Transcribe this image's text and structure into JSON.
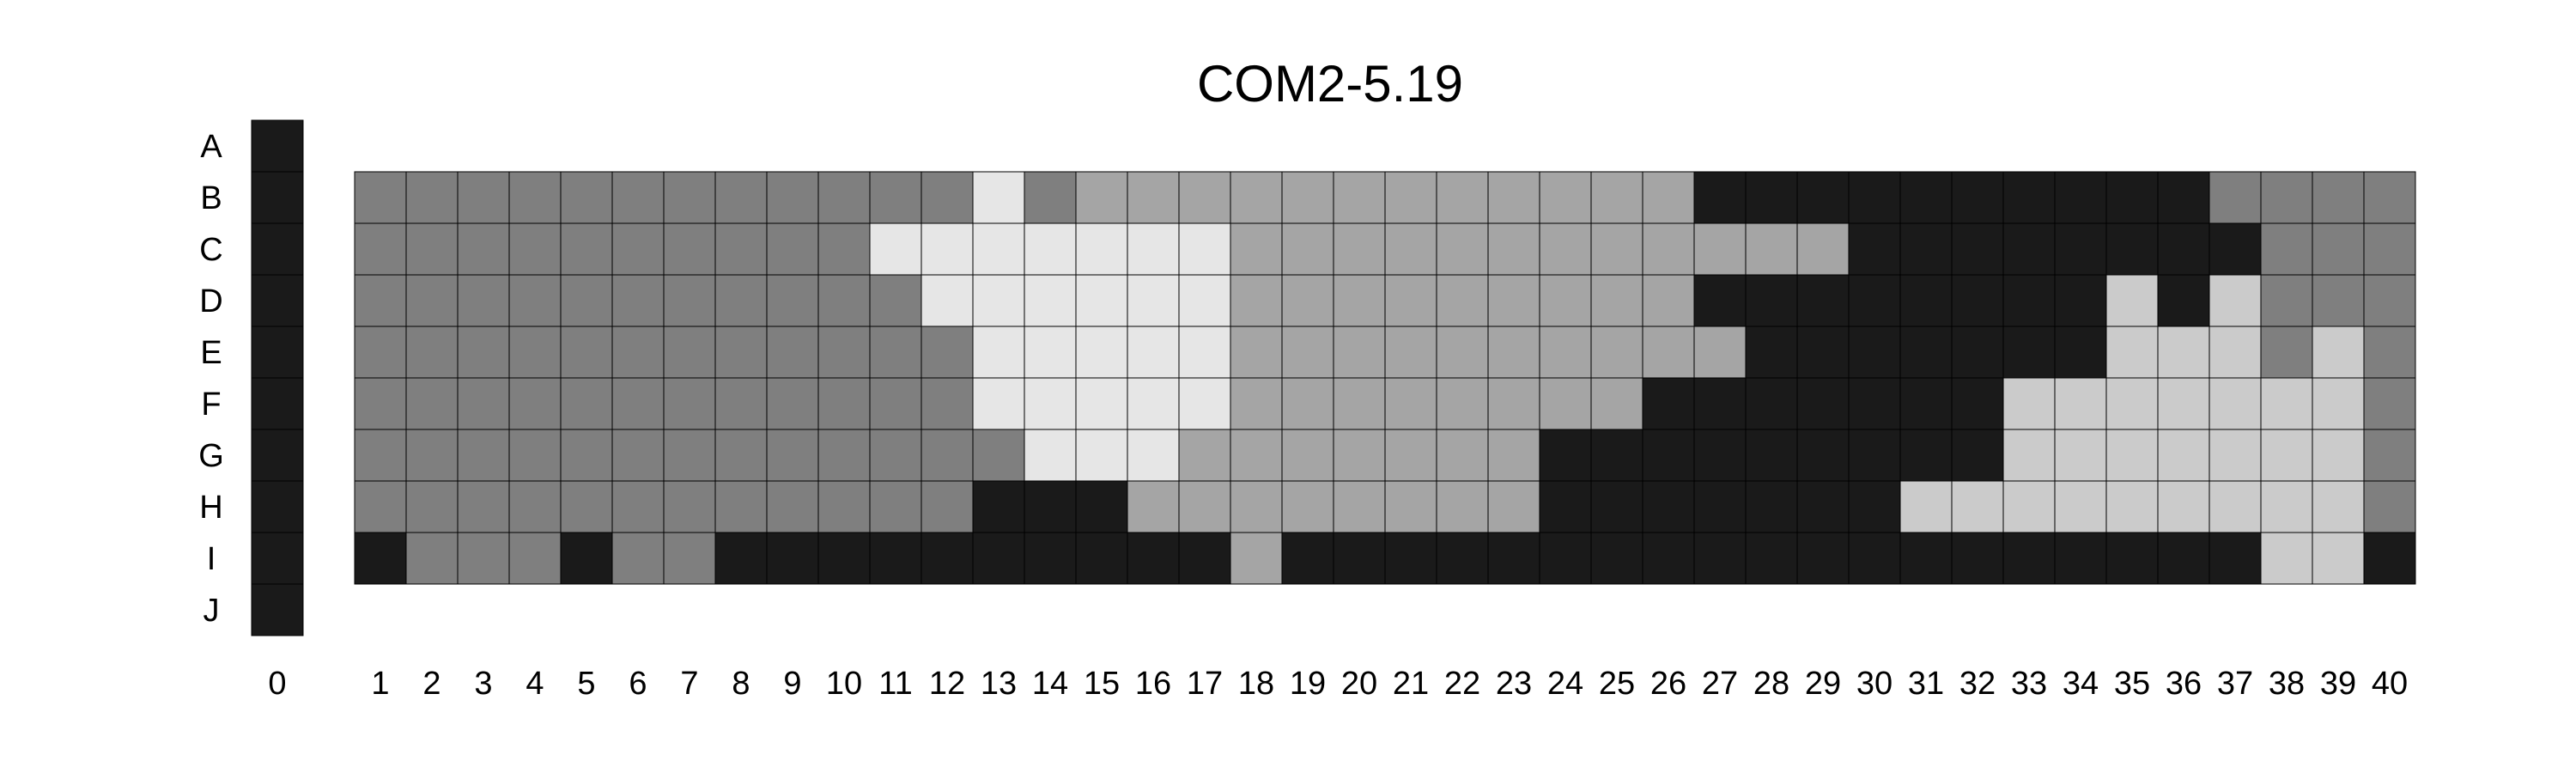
{
  "chart_data": {
    "type": "heatmap",
    "title": "COM2-5.19",
    "row_labels": [
      "A",
      "B",
      "C",
      "D",
      "E",
      "F",
      "G",
      "H",
      "I",
      "J"
    ],
    "column_zero_label": "0",
    "columns": [
      "1",
      "2",
      "3",
      "4",
      "5",
      "6",
      "7",
      "8",
      "9",
      "10",
      "11",
      "12",
      "13",
      "14",
      "15",
      "16",
      "17",
      "18",
      "19",
      "20",
      "21",
      "22",
      "23",
      "24",
      "25",
      "26",
      "27",
      "28",
      "29",
      "30",
      "31",
      "32",
      "33",
      "34",
      "35",
      "36",
      "37",
      "38",
      "39",
      "40"
    ],
    "grid_rows": [
      "B",
      "C",
      "D",
      "E",
      "F",
      "G",
      "H",
      "I"
    ],
    "palette": {
      "0": "#1a1a1a",
      "1": "#7f7f7f",
      "2": "#a5a5a5",
      "3": "#cbcbcb",
      "4": "#e6e6e6"
    },
    "column_zero_color": "#1a1a1a",
    "cell_border_color": "#000000",
    "values": [
      [
        1,
        1,
        1,
        1,
        1,
        1,
        1,
        1,
        1,
        1,
        1,
        1,
        4,
        1,
        2,
        2,
        2,
        2,
        2,
        2,
        2,
        2,
        2,
        2,
        2,
        2,
        0,
        0,
        0,
        0,
        0,
        0,
        0,
        0,
        0,
        0,
        1,
        1,
        1,
        1
      ],
      [
        1,
        1,
        1,
        1,
        1,
        1,
        1,
        1,
        1,
        1,
        4,
        4,
        4,
        4,
        4,
        4,
        4,
        2,
        2,
        2,
        2,
        2,
        2,
        2,
        2,
        2,
        2,
        2,
        2,
        0,
        0,
        0,
        0,
        0,
        0,
        0,
        0,
        1,
        1,
        1
      ],
      [
        1,
        1,
        1,
        1,
        1,
        1,
        1,
        1,
        1,
        1,
        1,
        4,
        4,
        4,
        4,
        4,
        4,
        2,
        2,
        2,
        2,
        2,
        2,
        2,
        2,
        2,
        0,
        0,
        0,
        0,
        0,
        0,
        0,
        0,
        3,
        0,
        3,
        1,
        1,
        1
      ],
      [
        1,
        1,
        1,
        1,
        1,
        1,
        1,
        1,
        1,
        1,
        1,
        1,
        4,
        4,
        4,
        4,
        4,
        2,
        2,
        2,
        2,
        2,
        2,
        2,
        2,
        2,
        2,
        0,
        0,
        0,
        0,
        0,
        0,
        0,
        3,
        3,
        3,
        1,
        3,
        1
      ],
      [
        1,
        1,
        1,
        1,
        1,
        1,
        1,
        1,
        1,
        1,
        1,
        1,
        4,
        4,
        4,
        4,
        4,
        2,
        2,
        2,
        2,
        2,
        2,
        2,
        2,
        0,
        0,
        0,
        0,
        0,
        0,
        0,
        3,
        3,
        3,
        3,
        3,
        3,
        3,
        1
      ],
      [
        1,
        1,
        1,
        1,
        1,
        1,
        1,
        1,
        1,
        1,
        1,
        1,
        1,
        4,
        4,
        4,
        2,
        2,
        2,
        2,
        2,
        2,
        2,
        0,
        0,
        0,
        0,
        0,
        0,
        0,
        0,
        0,
        3,
        3,
        3,
        3,
        3,
        3,
        3,
        1
      ],
      [
        1,
        1,
        1,
        1,
        1,
        1,
        1,
        1,
        1,
        1,
        1,
        1,
        0,
        0,
        0,
        2,
        2,
        2,
        2,
        2,
        2,
        2,
        2,
        0,
        0,
        0,
        0,
        0,
        0,
        0,
        3,
        3,
        3,
        3,
        3,
        3,
        3,
        3,
        3,
        1
      ],
      [
        0,
        1,
        1,
        1,
        0,
        1,
        1,
        0,
        0,
        0,
        0,
        0,
        0,
        0,
        0,
        0,
        0,
        2,
        0,
        0,
        0,
        0,
        0,
        0,
        0,
        0,
        0,
        0,
        0,
        0,
        0,
        0,
        0,
        0,
        0,
        0,
        0,
        3,
        3,
        0
      ]
    ]
  }
}
